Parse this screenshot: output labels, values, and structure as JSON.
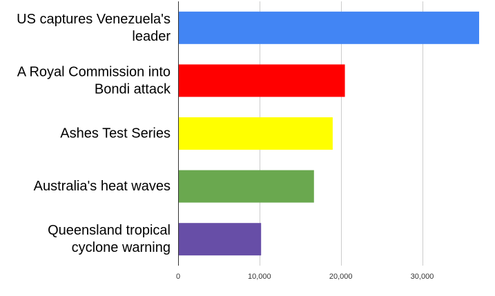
{
  "chart_data": {
    "type": "bar",
    "orientation": "horizontal",
    "categories": [
      [
        "US captures Venezuela's",
        "leader"
      ],
      [
        "A Royal Commission into",
        "Bondi attack"
      ],
      [
        "Ashes Test Series"
      ],
      [
        "Australia's heat waves"
      ],
      [
        "Queensland tropical",
        "cyclone warning"
      ]
    ],
    "values": [
      37000,
      20500,
      19000,
      16700,
      10200
    ],
    "colors": [
      "#4285f4",
      "#ff0000",
      "#ffff00",
      "#6aa84f",
      "#674ea7"
    ],
    "xlim": [
      0,
      37000
    ],
    "xticks": [
      0,
      10000,
      20000,
      30000
    ],
    "xtick_labels": [
      "0",
      "10,000",
      "20,000",
      "30,000"
    ],
    "grid": true,
    "title": "",
    "xlabel": "",
    "ylabel": ""
  }
}
